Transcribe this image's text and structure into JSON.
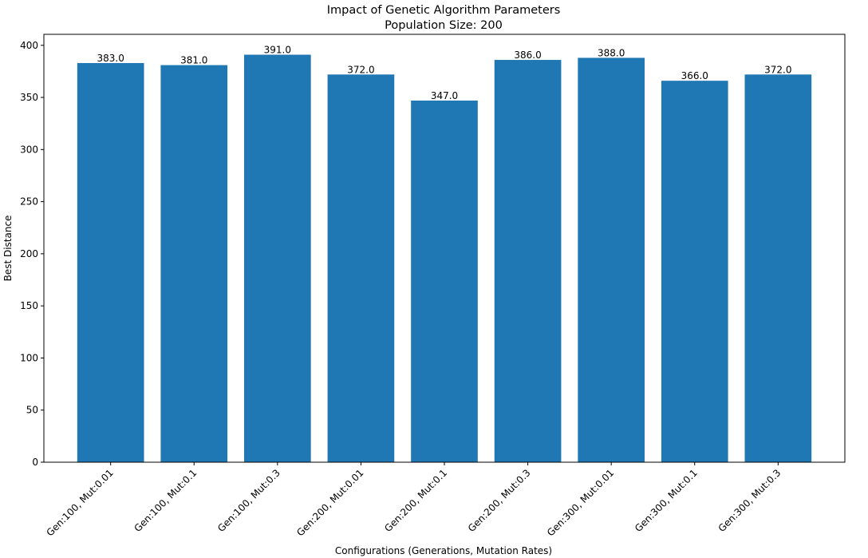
{
  "chart_data": {
    "type": "bar",
    "title": "Impact of Genetic Algorithm Parameters",
    "subtitle": "Population Size: 200",
    "xlabel": "Configurations (Generations, Mutation Rates)",
    "ylabel": "Best Distance",
    "categories": [
      "Gen:100, Mut:0.01",
      "Gen:100, Mut:0.1",
      "Gen:100, Mut:0.3",
      "Gen:200, Mut:0.01",
      "Gen:200, Mut:0.1",
      "Gen:200, Mut:0.3",
      "Gen:300, Mut:0.01",
      "Gen:300, Mut:0.1",
      "Gen:300, Mut:0.3"
    ],
    "values": [
      383.0,
      381.0,
      391.0,
      372.0,
      347.0,
      386.0,
      388.0,
      366.0,
      372.0
    ],
    "data_labels": [
      "383.0",
      "381.0",
      "391.0",
      "372.0",
      "347.0",
      "386.0",
      "388.0",
      "366.0",
      "372.0"
    ],
    "ylim": [
      0,
      410.55
    ],
    "yticks": [
      0,
      50,
      100,
      150,
      200,
      250,
      300,
      350,
      400
    ],
    "grid": false,
    "bar_color": "#1f77b4"
  }
}
